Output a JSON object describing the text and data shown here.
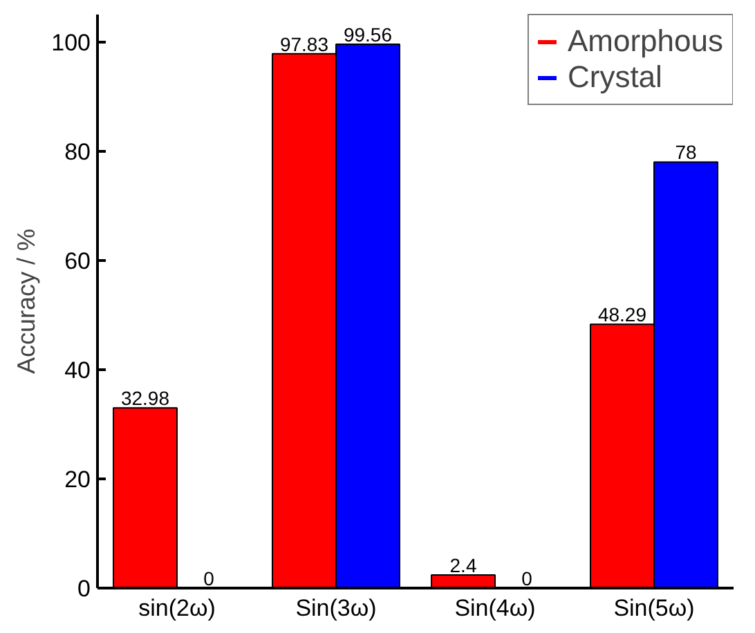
{
  "chart_data": {
    "type": "bar",
    "ylabel": "Accuracy / %",
    "categories": [
      "sin(2ω)",
      "Sin(3ω)",
      "Sin(4ω)",
      "Sin(5ω)"
    ],
    "series": [
      {
        "name": "Amorphous",
        "color": "#ff0000",
        "values": [
          32.98,
          97.83,
          2.4,
          48.29
        ]
      },
      {
        "name": "Crystal",
        "color": "#0000ff",
        "values": [
          0,
          99.56,
          0,
          78
        ]
      }
    ],
    "ylim": [
      0,
      105
    ],
    "yticks": [
      0,
      20,
      40,
      60,
      80,
      100
    ],
    "data_labels": true,
    "grid": false,
    "legend": "top right"
  }
}
